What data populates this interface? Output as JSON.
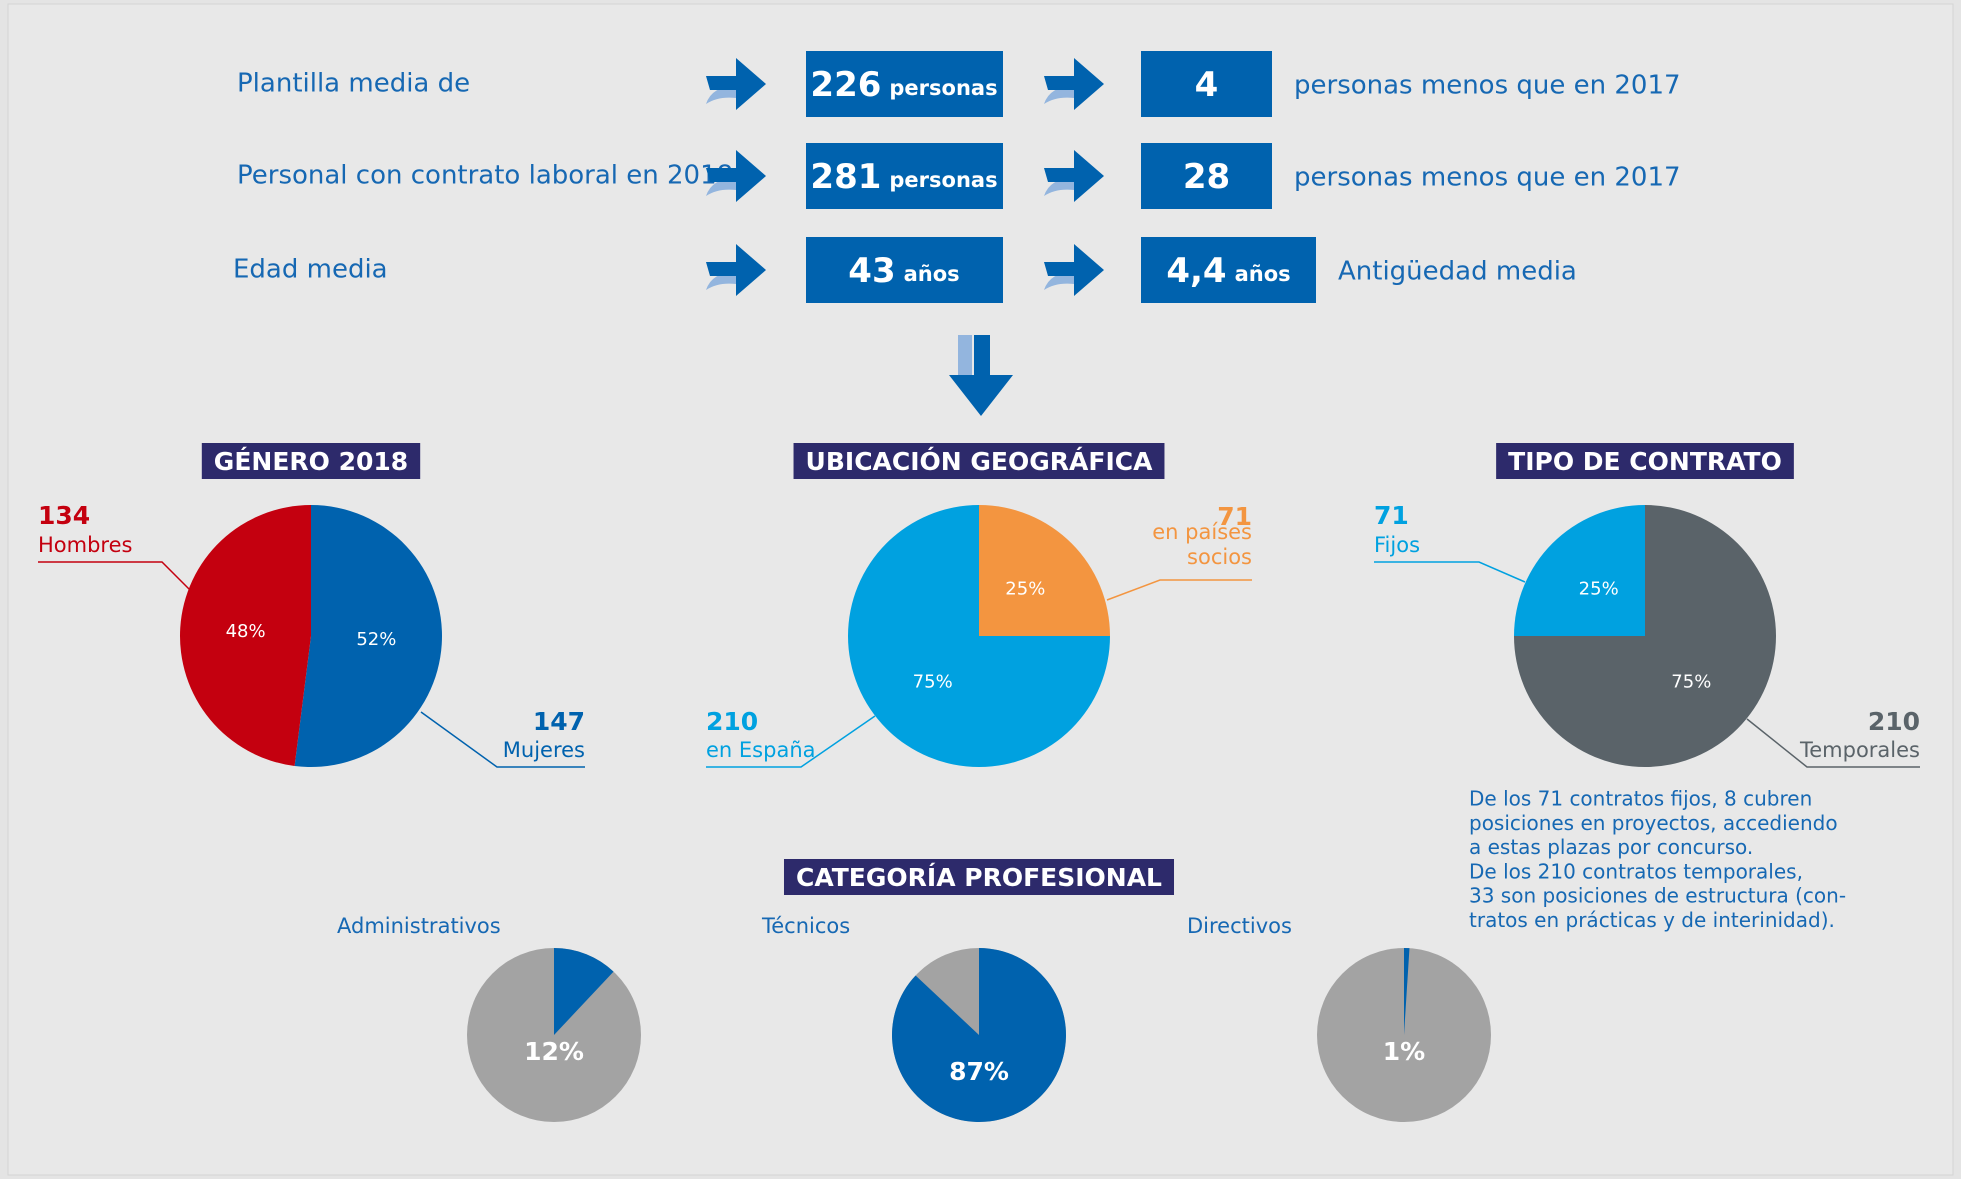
{
  "rows": [
    {
      "label": "Plantilla media de",
      "value": "226",
      "unit": "personas",
      "change": "4",
      "note": "personas menos que en 2017"
    },
    {
      "label": "Personal con contrato laboral en 2018",
      "value": "281",
      "unit": "personas",
      "change": "28",
      "note": "personas menos que en 2017"
    },
    {
      "label": "Edad media",
      "value": "43",
      "unit": "años",
      "change": "4,4",
      "change_unit": "años",
      "note": "Antigüedad media"
    }
  ],
  "chart_data": [
    {
      "type": "pie",
      "title": "GÉNERO 2018",
      "categories": [
        "Mujeres",
        "Hombres"
      ],
      "counts": [
        147,
        134
      ],
      "values": [
        52,
        48
      ],
      "value_labels": [
        "52%",
        "48%"
      ],
      "colors": [
        "#0062ae",
        "#c4000f"
      ]
    },
    {
      "type": "pie",
      "title": "UBICACIÓN GEOGRÁFICA",
      "categories": [
        "en países socios",
        "en España"
      ],
      "counts": [
        71,
        210
      ],
      "values": [
        25,
        75
      ],
      "value_labels": [
        "25%",
        "75%"
      ],
      "colors": [
        "#f39540",
        "#00a1e0"
      ]
    },
    {
      "type": "pie",
      "title": "TIPO DE CONTRATO",
      "categories": [
        "Temporales",
        "Fijos"
      ],
      "counts": [
        210,
        71
      ],
      "values": [
        75,
        25
      ],
      "value_labels": [
        "75%",
        "25%"
      ],
      "colors": [
        "#5a6369",
        "#00a1e0"
      ]
    },
    {
      "type": "pies",
      "title": "CATEGORÍA PROFESIONAL",
      "categories": [
        "Administrativos",
        "Técnicos",
        "Directivos"
      ],
      "values": [
        12,
        87,
        1
      ],
      "value_labels": [
        "12%",
        "87%",
        "1%"
      ],
      "color": "#0062ae",
      "rest_color": "#a3a3a3"
    }
  ],
  "note": [
    "De los 71 contratos fijos, 8 cubren",
    "posiciones en proyectos, accediendo",
    "a estas plazas por concurso.",
    "De los 210 contratos temporales,",
    "33 son posiciones de estructura (con-",
    "tratos en prácticas y de interinidad)."
  ]
}
